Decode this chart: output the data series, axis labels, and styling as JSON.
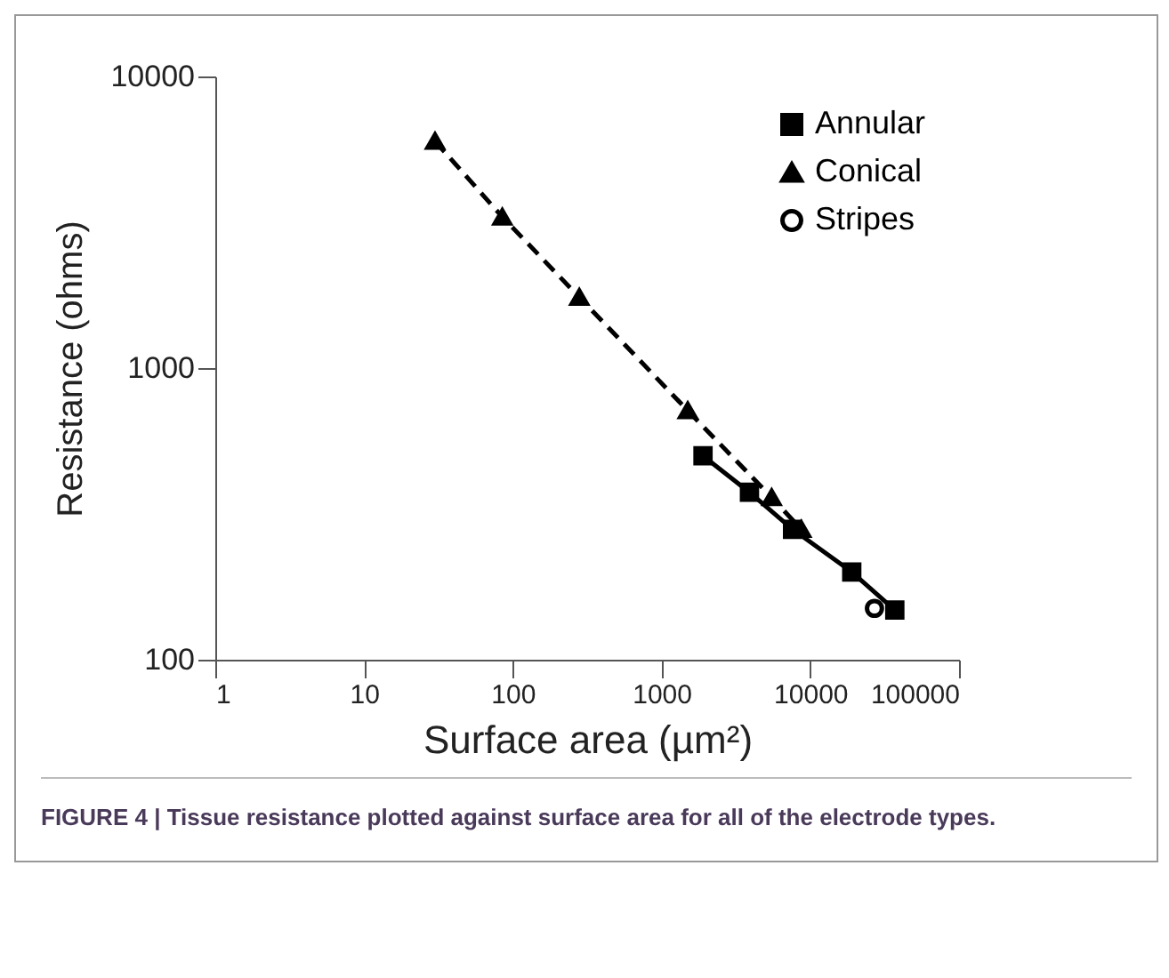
{
  "chart_data": {
    "type": "line",
    "xlabel": "Surface area (µm²)",
    "ylabel": "Resistance (ohms)",
    "log": "xy",
    "xlim": [
      1,
      100000
    ],
    "xticks": [
      1,
      10,
      100,
      1000,
      10000,
      100000
    ],
    "ylim": [
      100,
      10000
    ],
    "yticks": [
      100,
      1000,
      10000
    ],
    "grid": false,
    "legend": "top right",
    "series": [
      {
        "name": "Annular",
        "color": "#000000",
        "marker": "square",
        "line_style": "solid",
        "x": [
          1900,
          3900,
          7600,
          19000,
          37000
        ],
        "values": [
          500,
          375,
          280,
          200,
          148
        ]
      },
      {
        "name": "Conical",
        "color": "#000000",
        "marker": "triangle",
        "line_style": "dashed",
        "x": [
          30,
          85,
          280,
          1500,
          5500,
          8700
        ],
        "values": [
          6000,
          3300,
          1750,
          715,
          360,
          280
        ]
      },
      {
        "name": "Stripes",
        "type": "scatter",
        "color": "#000000",
        "marker": "circle",
        "x": [
          27000
        ],
        "values": [
          150
        ]
      }
    ],
    "annotations": [
      "FIGURE 4 | Tissue resistance plotted against surface area for all of the electrode types."
    ]
  }
}
